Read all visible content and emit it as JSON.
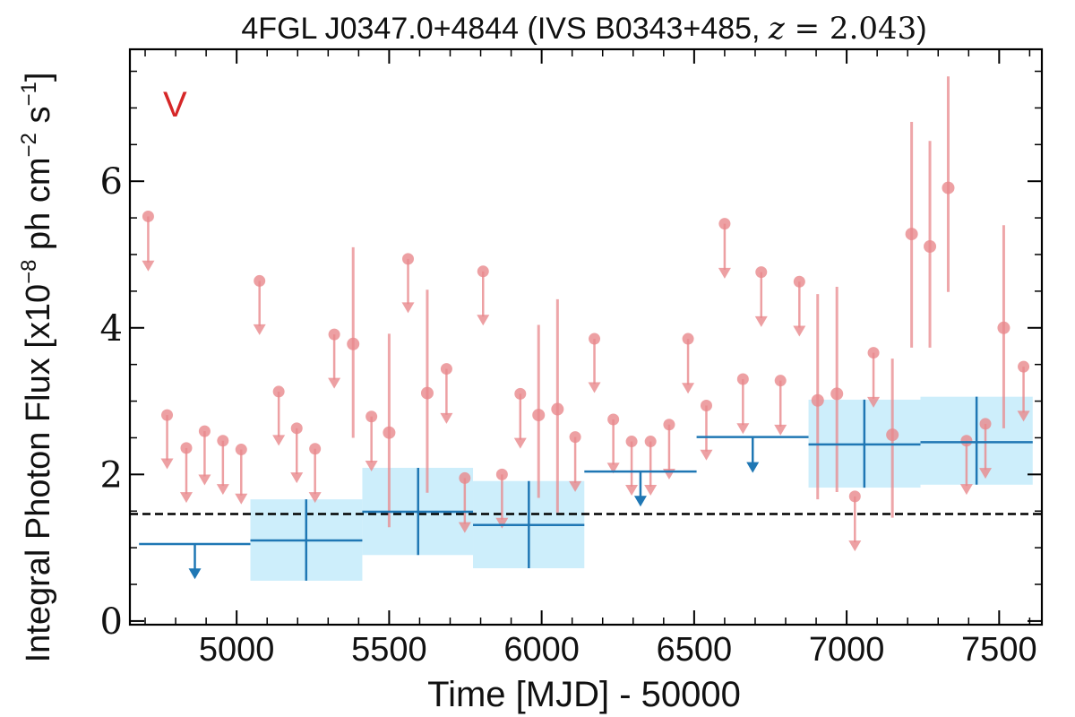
{
  "chart_data": {
    "type": "scatter",
    "title": "4FGL J0347.0+4844 (IVS B0343+485, z = 2.043)",
    "title_parts": {
      "prefix": "4FGL J0347.0+4844 (IVS B0343+485, ",
      "z_var": "z",
      "z_eq": " = 2.043",
      "suffix": ")"
    },
    "panel_label": "V",
    "xlabel": "Time [MJD] - 50000",
    "ylabel": "Integral Photon Flux [x10",
    "ylabel_exp1": "−8",
    "ylabel_mid": " ph cm",
    "ylabel_exp2": "−2",
    "ylabel_tail": " s",
    "ylabel_exp3": "−1",
    "ylabel_close": "]",
    "xlim": [
      4650,
      7640
    ],
    "ylim": [
      -0.05,
      7.8
    ],
    "xticks": [
      5000,
      5500,
      6000,
      6500,
      7000,
      7500
    ],
    "xtick_labels": [
      "5000",
      "5500",
      "6000",
      "6500",
      "7000",
      "7500"
    ],
    "yticks": [
      0,
      2,
      4,
      6
    ],
    "ytick_labels": [
      "0",
      "2",
      "4",
      "6"
    ],
    "grid": false,
    "colors": {
      "short_bins": "#e8888c",
      "long_bins": "#1f77b4",
      "long_band": "#cdeefb",
      "mean_line": "#000000",
      "panel_label": "#d62728"
    },
    "mean_flux": 1.46,
    "series": [
      {
        "kind": "short-bin detections",
        "points": [
          {
            "x": 5382,
            "y": 3.78,
            "lo": 2.5,
            "hi": 5.1
          },
          {
            "x": 5500,
            "y": 2.57,
            "lo": 1.28,
            "hi": 3.92
          },
          {
            "x": 5625,
            "y": 3.11,
            "lo": 1.75,
            "hi": 4.52
          },
          {
            "x": 5990,
            "y": 2.81,
            "lo": 1.68,
            "hi": 4.04
          },
          {
            "x": 6052,
            "y": 2.89,
            "lo": 1.48,
            "hi": 4.39
          },
          {
            "x": 6905,
            "y": 3.01,
            "lo": 1.66,
            "hi": 4.46
          },
          {
            "x": 6968,
            "y": 3.1,
            "lo": 1.76,
            "hi": 4.56
          },
          {
            "x": 7150,
            "y": 2.54,
            "lo": 1.41,
            "hi": 3.58
          },
          {
            "x": 7213,
            "y": 5.28,
            "lo": 3.73,
            "hi": 6.81
          },
          {
            "x": 7273,
            "y": 5.11,
            "lo": 3.73,
            "hi": 6.55
          },
          {
            "x": 7333,
            "y": 5.91,
            "lo": 4.49,
            "hi": 7.43
          },
          {
            "x": 7515,
            "y": 4.0,
            "lo": 2.63,
            "hi": 5.4
          }
        ]
      },
      {
        "kind": "short-bin upper limits",
        "points": [
          {
            "x": 4710,
            "y": 5.52,
            "tip": 4.82
          },
          {
            "x": 4772,
            "y": 2.81,
            "tip": 2.12
          },
          {
            "x": 4835,
            "y": 2.36,
            "tip": 1.66
          },
          {
            "x": 4895,
            "y": 2.59,
            "tip": 1.9
          },
          {
            "x": 4955,
            "y": 2.46,
            "tip": 1.77
          },
          {
            "x": 5015,
            "y": 2.34,
            "tip": 1.64
          },
          {
            "x": 5075,
            "y": 4.64,
            "tip": 3.95
          },
          {
            "x": 5138,
            "y": 3.13,
            "tip": 2.44
          },
          {
            "x": 5197,
            "y": 2.63,
            "tip": 1.93
          },
          {
            "x": 5257,
            "y": 2.35,
            "tip": 1.66
          },
          {
            "x": 5320,
            "y": 3.91,
            "tip": 3.22
          },
          {
            "x": 5442,
            "y": 2.79,
            "tip": 2.09
          },
          {
            "x": 5562,
            "y": 4.94,
            "tip": 4.25
          },
          {
            "x": 5688,
            "y": 3.44,
            "tip": 2.74
          },
          {
            "x": 5748,
            "y": 1.95,
            "tip": 1.25
          },
          {
            "x": 5808,
            "y": 4.77,
            "tip": 4.08
          },
          {
            "x": 5870,
            "y": 2.0,
            "tip": 1.31
          },
          {
            "x": 5930,
            "y": 3.1,
            "tip": 2.4
          },
          {
            "x": 6110,
            "y": 2.51,
            "tip": 1.81
          },
          {
            "x": 6173,
            "y": 3.85,
            "tip": 3.16
          },
          {
            "x": 6235,
            "y": 2.75,
            "tip": 2.06
          },
          {
            "x": 6295,
            "y": 2.45,
            "tip": 1.76
          },
          {
            "x": 6357,
            "y": 2.45,
            "tip": 1.76
          },
          {
            "x": 6418,
            "y": 2.68,
            "tip": 1.98
          },
          {
            "x": 6480,
            "y": 3.85,
            "tip": 3.15
          },
          {
            "x": 6540,
            "y": 2.94,
            "tip": 2.24
          },
          {
            "x": 6600,
            "y": 5.42,
            "tip": 4.72
          },
          {
            "x": 6660,
            "y": 3.3,
            "tip": 2.6
          },
          {
            "x": 6720,
            "y": 4.76,
            "tip": 4.06
          },
          {
            "x": 6783,
            "y": 3.28,
            "tip": 2.58
          },
          {
            "x": 6845,
            "y": 4.63,
            "tip": 3.93
          },
          {
            "x": 7027,
            "y": 1.7,
            "tip": 1.0
          },
          {
            "x": 7088,
            "y": 3.66,
            "tip": 2.96
          },
          {
            "x": 7393,
            "y": 2.46,
            "tip": 1.77
          },
          {
            "x": 7455,
            "y": 2.69,
            "tip": 1.99
          },
          {
            "x": 7580,
            "y": 3.47,
            "tip": 2.77
          }
        ]
      },
      {
        "kind": "long-bin detections",
        "points": [
          {
            "x0": 5045,
            "x1": 5412,
            "xc": 5228,
            "y": 1.1,
            "lo": 0.55,
            "hi": 1.66
          },
          {
            "x0": 5412,
            "x1": 5775,
            "xc": 5595,
            "y": 1.49,
            "lo": 0.9,
            "hi": 2.09
          },
          {
            "x0": 5775,
            "x1": 6140,
            "xc": 5958,
            "y": 1.31,
            "lo": 0.72,
            "hi": 1.91
          },
          {
            "x0": 6875,
            "x1": 7242,
            "xc": 7058,
            "y": 2.41,
            "lo": 1.82,
            "hi": 3.02
          },
          {
            "x0": 7242,
            "x1": 7610,
            "xc": 7426,
            "y": 2.44,
            "lo": 1.86,
            "hi": 3.06
          }
        ]
      },
      {
        "kind": "long-bin upper limits",
        "points": [
          {
            "x0": 4680,
            "x1": 5045,
            "xc": 4863,
            "y": 1.05,
            "tip": 0.62
          },
          {
            "x0": 6140,
            "x1": 6508,
            "xc": 6324,
            "y": 2.04,
            "tip": 1.61
          },
          {
            "x0": 6508,
            "x1": 6875,
            "xc": 6692,
            "y": 2.51,
            "tip": 2.07
          }
        ]
      }
    ]
  }
}
